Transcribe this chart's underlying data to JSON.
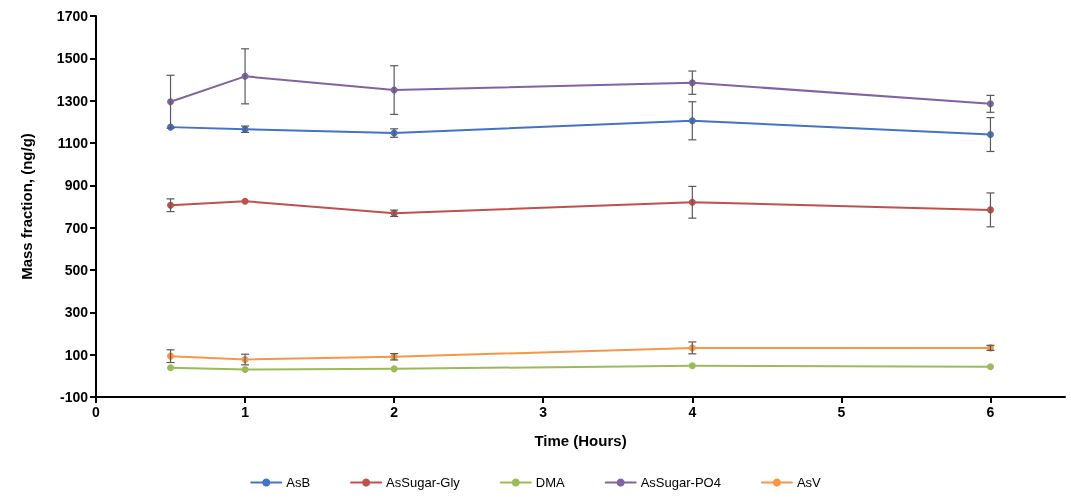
{
  "chart_data": {
    "type": "line",
    "xlabel": "Time (Hours)",
    "ylabel": "Mass fraction, (ng/g)",
    "x": [
      0.5,
      1,
      2,
      4,
      6
    ],
    "series": [
      {
        "name": "AsB",
        "color": "#4472c4",
        "values": [
          1175,
          1165,
          1147,
          1205,
          1140
        ],
        "errors": [
          null,
          15,
          20,
          90,
          80
        ]
      },
      {
        "name": "AsSugar-Gly",
        "color": "#c0504d",
        "values": [
          806,
          825,
          768,
          820,
          784
        ],
        "errors": [
          30,
          null,
          15,
          75,
          80
        ]
      },
      {
        "name": "DMA",
        "color": "#9bbb59",
        "values": [
          38,
          30,
          33,
          48,
          43
        ],
        "errors": [
          null,
          null,
          null,
          null,
          null
        ]
      },
      {
        "name": "AsSugar-PO4",
        "color": "#8064a2",
        "values": [
          1295,
          1415,
          1350,
          1385,
          1285
        ],
        "errors": [
          125,
          130,
          115,
          55,
          40
        ]
      },
      {
        "name": "AsV",
        "color": "#f79646",
        "values": [
          93,
          77,
          90,
          132,
          132
        ],
        "errors": [
          30,
          25,
          15,
          28,
          12
        ]
      }
    ],
    "xlim": [
      0,
      6.5
    ],
    "xticks": [
      0,
      1,
      2,
      3,
      4,
      5,
      6
    ],
    "ylim": [
      -100,
      1700
    ],
    "yticks": [
      -100,
      100,
      300,
      500,
      700,
      900,
      1100,
      1300,
      1500,
      1700
    ],
    "grid": false,
    "legend": "bottom",
    "marker": "circle",
    "line_style": "solid"
  }
}
